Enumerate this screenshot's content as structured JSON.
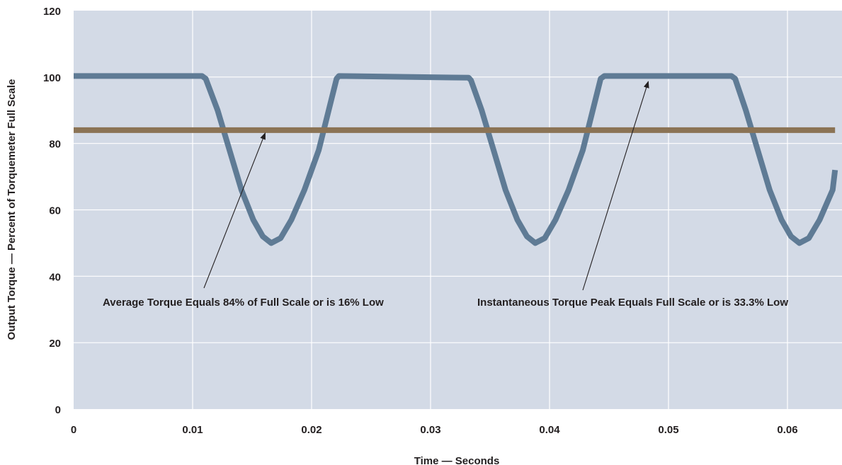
{
  "chart_data": {
    "type": "line",
    "xlabel": "Time — Seconds",
    "ylabel": "Output Torque — Percent of Torquemeter Full Scale",
    "xlim": [
      0,
      0.064
    ],
    "ylim": [
      0,
      120
    ],
    "x_ticks": [
      0,
      0.01,
      0.02,
      0.03,
      0.04,
      0.05,
      0.06
    ],
    "x_tick_labels": [
      "0",
      "0.01",
      "0.02",
      "0.03",
      "0.04",
      "0.05",
      "0.06"
    ],
    "y_ticks": [
      0,
      20,
      40,
      60,
      80,
      100,
      120
    ],
    "y_tick_labels": [
      "0",
      "20",
      "40",
      "60",
      "80",
      "100",
      "120"
    ],
    "grid": true,
    "series": [
      {
        "name": "",
        "color": "#5f7b95",
        "x": [
          0,
          0.0108,
          0.0111,
          0.0121,
          0.0131,
          0.0141,
          0.0151,
          0.0159,
          0.0166,
          0.0174,
          0.0183,
          0.0194,
          0.0206,
          0.0221,
          0.0223,
          0.0332,
          0.0334,
          0.0343,
          0.0353,
          0.0363,
          0.0373,
          0.0381,
          0.0388,
          0.0396,
          0.0405,
          0.0416,
          0.0428,
          0.0443,
          0.0446,
          0.0553,
          0.0556,
          0.0565,
          0.0575,
          0.0585,
          0.0595,
          0.0603,
          0.061,
          0.0618,
          0.0627,
          0.0638,
          0.064
        ],
        "y": [
          100.3,
          100.3,
          99.5,
          90,
          78,
          66,
          57,
          52,
          50,
          51.5,
          57,
          66,
          78,
          99.5,
          100.3,
          99.8,
          99,
          90,
          78,
          66,
          57,
          52,
          50,
          51.5,
          57,
          66,
          78,
          99.5,
          100.3,
          100.3,
          99.5,
          90,
          78,
          66,
          57,
          52,
          50,
          51.5,
          57,
          66,
          72
        ]
      },
      {
        "name": "",
        "color": "#8b7355",
        "x": [
          0,
          0.064
        ],
        "y": [
          84,
          84
        ]
      }
    ],
    "annotations": [
      {
        "text": "Average Torque Equals 84% of Full Scale or is 16% Low",
        "arrow_to": [
          0.0161,
          84
        ]
      },
      {
        "text": "Instantaneous Torque Peak Equals Full Scale or is 33.3% Low",
        "arrow_to": [
          0.0483,
          99.5
        ]
      }
    ]
  }
}
